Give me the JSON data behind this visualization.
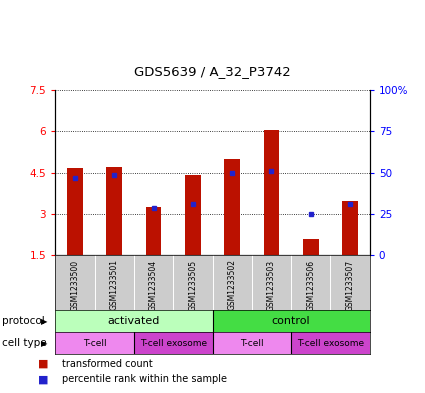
{
  "title": "GDS5639 / A_32_P3742",
  "samples": [
    "GSM1233500",
    "GSM1233501",
    "GSM1233504",
    "GSM1233505",
    "GSM1233502",
    "GSM1233503",
    "GSM1233506",
    "GSM1233507"
  ],
  "transformed_count": [
    4.65,
    4.7,
    3.25,
    4.4,
    5.0,
    6.05,
    2.1,
    3.45
  ],
  "percentile_rank": [
    4.3,
    4.4,
    3.2,
    3.35,
    4.5,
    4.55,
    3.0,
    3.35
  ],
  "ylim_left": [
    1.5,
    7.5
  ],
  "ylim_right": [
    0,
    100
  ],
  "yticks_left": [
    1.5,
    3.0,
    4.5,
    6.0,
    7.5
  ],
  "yticks_right": [
    0,
    25,
    50,
    75,
    100
  ],
  "ytick_labels_left": [
    "1.5",
    "3",
    "4.5",
    "6",
    "7.5"
  ],
  "ytick_labels_right": [
    "0",
    "25",
    "50",
    "75",
    "100%"
  ],
  "bar_color": "#bb1100",
  "dot_color": "#2222cc",
  "baseline": 1.5,
  "protocol_labels": [
    "activated",
    "control"
  ],
  "protocol_color_activated": "#bbffbb",
  "protocol_color_control": "#44dd44",
  "cell_type_labels": [
    "T-cell",
    "T-cell exosome",
    "T-cell",
    "T-cell exosome"
  ],
  "cell_type_color_tcell": "#ee88ee",
  "cell_type_color_exosome": "#cc44cc",
  "legend_red_label": "transformed count",
  "legend_blue_label": "percentile rank within the sample",
  "protocol_row_label": "protocol",
  "cell_type_row_label": "cell type",
  "sample_bg_color": "#cccccc"
}
